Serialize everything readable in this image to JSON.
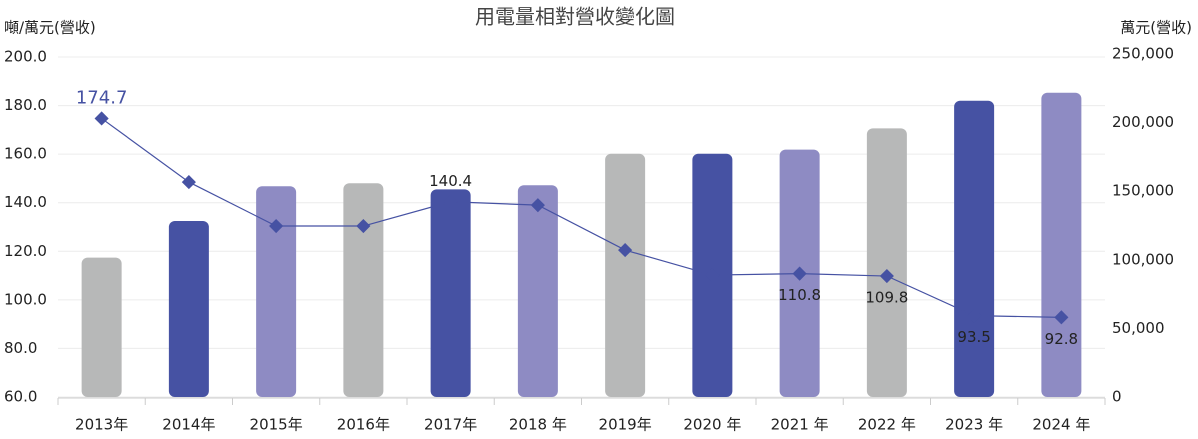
{
  "chart_data": {
    "type": "bar-line",
    "title": "用電量相對營收變化圖",
    "ylabel": "噸/萬元(營收)",
    "y2label": "萬元(營收)",
    "categories": [
      "2013年",
      "2014年",
      "2015年",
      "2016年",
      "2017年",
      "2018 年",
      "2019年",
      "2020 年",
      "2021 年",
      "2022 年",
      "2023 年",
      "2024 年"
    ],
    "bars": {
      "axis": "y2",
      "values": [
        101600,
        128300,
        153600,
        155800,
        151300,
        154300,
        177300,
        177300,
        180300,
        195800,
        215900,
        221800
      ],
      "colors": [
        "#b7b8b8",
        "#4652a3",
        "#8e8bc3",
        "#b7b8b8",
        "#4652a3",
        "#8e8bc3",
        "#b7b8b8",
        "#4652a3",
        "#8e8bc3",
        "#b7b8b8",
        "#4652a3",
        "#8e8bc3"
      ]
    },
    "line": {
      "values": [
        174.7,
        148.5,
        130.4,
        130.4,
        140.4,
        139,
        120.5,
        110.2,
        110.8,
        109.8,
        93.5,
        92.8
      ],
      "value_labels": [
        "174.7",
        null,
        null,
        null,
        "140.4",
        null,
        null,
        null,
        "110.8",
        "109.8",
        "93.5",
        "92.8"
      ],
      "color": "#4652a3"
    },
    "ylim": [
      60,
      200
    ],
    "yticks": [
      {
        "value": 60,
        "label": "60.0"
      },
      {
        "value": 80,
        "label": "80.0"
      },
      {
        "value": 100,
        "label": "100.0"
      },
      {
        "value": 120,
        "label": "120.0"
      },
      {
        "value": 140,
        "label": "140.0"
      },
      {
        "value": 160,
        "label": "160.0"
      },
      {
        "value": 180,
        "label": "180.0"
      },
      {
        "value": 200,
        "label": "200.0"
      }
    ],
    "y2lim": [
      0,
      250000
    ],
    "y2ticks": [
      0,
      {
        "value": 50000,
        "label": "50,000"
      },
      {
        "value": 100000,
        "label": "100,000"
      },
      {
        "value": 150000,
        "label": "150,000"
      },
      {
        "value": 200000,
        "label": "200,000"
      },
      {
        "value": 250000,
        "label": "250,000"
      }
    ],
    "grid": true
  }
}
